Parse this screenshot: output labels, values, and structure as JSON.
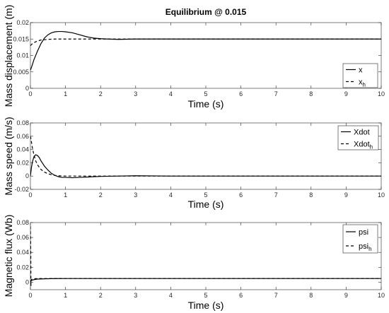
{
  "chart_data": [
    {
      "type": "line",
      "title": "Equilibrium @ 0.015",
      "xlabel": "Time (s)",
      "ylabel": "Mass displacement (m)",
      "xlim": [
        0,
        10
      ],
      "ylim": [
        0,
        0.02
      ],
      "xticks": [
        "0",
        "1",
        "2",
        "3",
        "4",
        "5",
        "6",
        "7",
        "8",
        "9",
        "10"
      ],
      "yticks": [
        "0",
        "0.005",
        "0.01",
        "0.015",
        "0.02"
      ],
      "grid": false,
      "legend_position": "right",
      "series": [
        {
          "name": "x",
          "name_main": "x",
          "name_sub": "",
          "style": "solid",
          "x": [
            0,
            0.05,
            0.1,
            0.2,
            0.3,
            0.4,
            0.5,
            0.6,
            0.7,
            0.8,
            0.9,
            1.0,
            1.2,
            1.4,
            1.6,
            1.8,
            2.0,
            2.2,
            2.5,
            3.0,
            4.0,
            6.0,
            8.0,
            10.0
          ],
          "y": [
            0.0055,
            0.007,
            0.0087,
            0.0113,
            0.0136,
            0.0153,
            0.0163,
            0.0169,
            0.0172,
            0.0173,
            0.0173,
            0.0172,
            0.0169,
            0.0163,
            0.0157,
            0.0153,
            0.0151,
            0.015,
            0.0149,
            0.015,
            0.015,
            0.015,
            0.015,
            0.015
          ]
        },
        {
          "name": "x_h",
          "name_main": "x",
          "name_sub": "h",
          "style": "dashed",
          "x": [
            0,
            0.05,
            0.1,
            0.2,
            0.3,
            0.4,
            0.5,
            0.7,
            1.0,
            1.5,
            2.0,
            3.0,
            10.0
          ],
          "y": [
            0.013,
            0.0135,
            0.0139,
            0.0144,
            0.0147,
            0.0148,
            0.0149,
            0.015,
            0.015,
            0.015,
            0.015,
            0.015,
            0.015
          ]
        }
      ]
    },
    {
      "type": "line",
      "title": "",
      "xlabel": "Time (s)",
      "ylabel": "Mass speed (m/s)",
      "xlim": [
        0,
        10
      ],
      "ylim": [
        -0.02,
        0.08
      ],
      "xticks": [
        "0",
        "1",
        "2",
        "3",
        "4",
        "5",
        "6",
        "7",
        "8",
        "9",
        "10"
      ],
      "yticks": [
        "-0.02",
        "0",
        "0.02",
        "0.04",
        "0.06",
        "0.08"
      ],
      "grid": false,
      "legend_position": "top-right",
      "series": [
        {
          "name": "Xdot",
          "name_main": "Xdot",
          "name_sub": "",
          "style": "solid",
          "x": [
            0,
            0.03,
            0.06,
            0.1,
            0.15,
            0.2,
            0.25,
            0.3,
            0.4,
            0.5,
            0.6,
            0.7,
            0.8,
            0.9,
            1.0,
            1.2,
            1.4,
            1.6,
            1.8,
            2.0,
            2.5,
            3.0,
            4.0,
            6.0,
            10.0
          ],
          "y": [
            0.0,
            0.013,
            0.022,
            0.029,
            0.032,
            0.031,
            0.028,
            0.023,
            0.015,
            0.009,
            0.004,
            0.001,
            -0.001,
            -0.002,
            -0.002,
            -0.0025,
            -0.002,
            -0.0015,
            -0.001,
            -0.0005,
            0.0,
            0.0005,
            0.0,
            0.0,
            0.0
          ]
        },
        {
          "name": "Xdot_h",
          "name_main": "Xdot",
          "name_sub": "h",
          "style": "dashed",
          "x": [
            0,
            0.02,
            0.05,
            0.1,
            0.15,
            0.2,
            0.3,
            0.4,
            0.5,
            0.6,
            0.7,
            0.8,
            1.0,
            1.5,
            2.0,
            10.0
          ],
          "y": [
            0.06,
            0.055,
            0.044,
            0.032,
            0.023,
            0.017,
            0.01,
            0.006,
            0.0035,
            0.002,
            0.001,
            0.0005,
            0.0,
            0.0,
            0.0,
            0.0
          ]
        }
      ]
    },
    {
      "type": "line",
      "title": "",
      "xlabel": "Time (s)",
      "ylabel": "Magnetic flux (Wb)",
      "xlim": [
        0,
        10
      ],
      "ylim": [
        -0.01,
        0.08
      ],
      "xticks": [
        "0",
        "1",
        "2",
        "3",
        "4",
        "5",
        "6",
        "7",
        "8",
        "9",
        "10"
      ],
      "yticks": [
        "0",
        "0.02",
        "0.04",
        "0.06",
        "0.08"
      ],
      "grid": false,
      "legend_position": "top-right",
      "series": [
        {
          "name": "psi",
          "name_main": "psi",
          "name_sub": "",
          "style": "solid",
          "x": [
            0,
            0.1,
            0.2,
            0.4,
            0.6,
            0.8,
            1.0,
            1.5,
            2.0,
            3.0,
            10.0
          ],
          "y": [
            0.002,
            0.0035,
            0.0042,
            0.0046,
            0.0048,
            0.0049,
            0.005,
            0.005,
            0.005,
            0.005,
            0.005
          ]
        },
        {
          "name": "psi_h",
          "name_main": "psi",
          "name_sub": "h",
          "style": "dashed",
          "x": [
            0,
            0.005,
            0.01,
            0.015,
            0.02,
            0.04,
            0.08,
            0.15,
            0.3,
            0.6,
            1.0,
            10.0
          ],
          "y": [
            0.075,
            0.06,
            0.04,
            -0.005,
            0.003,
            0.004,
            0.0045,
            0.0048,
            0.005,
            0.005,
            0.005,
            0.005
          ]
        }
      ]
    }
  ]
}
